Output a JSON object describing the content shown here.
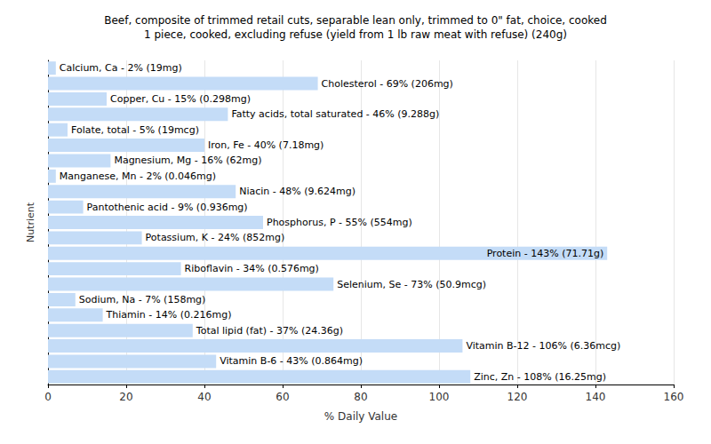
{
  "chart_data": {
    "type": "bar",
    "title": "Beef, composite of trimmed retail cuts, separable lean only, trimmed to 0\" fat, choice, cooked",
    "subtitle": "1 piece, cooked, excluding refuse (yield from 1 lb raw meat with refuse) (240g)",
    "x_label": "% Daily Value",
    "y_label": "Nutrient",
    "orientation": "horizontal",
    "color": "#c4dcf7",
    "grid": true,
    "data_labels": true,
    "tick_labels": "x",
    "xlim": [
      0,
      160
    ],
    "xticks": [
      0,
      20,
      40,
      60,
      80,
      100,
      120,
      140,
      160
    ],
    "categories": [
      "Calcium, Ca",
      "Cholesterol",
      "Copper, Cu",
      "Fatty acids, total saturated",
      "Folate, total",
      "Iron, Fe",
      "Magnesium, Mg",
      "Manganese, Mn",
      "Niacin",
      "Pantothenic acid",
      "Phosphorus, P",
      "Potassium, K",
      "Protein",
      "Riboflavin",
      "Selenium, Se",
      "Sodium, Na",
      "Thiamin",
      "Total lipid (fat)",
      "Vitamin B-12",
      "Vitamin B-6",
      "Zinc, Zn"
    ],
    "values": [
      2,
      69,
      15,
      46,
      5,
      40,
      16,
      2,
      48,
      9,
      55,
      24,
      143,
      34,
      73,
      7,
      14,
      37,
      106,
      43,
      108
    ],
    "value_labels": [
      "Calcium, Ca - 2% (19mg)",
      "Cholesterol - 69% (206mg)",
      "Copper, Cu - 15% (0.298mg)",
      "Fatty acids, total saturated - 46% (9.288g)",
      "Folate, total - 5% (19mcg)",
      "Iron, Fe - 40% (7.18mg)",
      "Magnesium, Mg - 16% (62mg)",
      "Manganese, Mn - 2% (0.046mg)",
      "Niacin - 48% (9.624mg)",
      "Pantothenic acid - 9% (0.936mg)",
      "Phosphorus, P - 55% (554mg)",
      "Potassium, K - 24% (852mg)",
      "Protein - 143% (71.71g)",
      "Riboflavin - 34% (0.576mg)",
      "Selenium, Se - 73% (50.9mcg)",
      "Sodium, Na - 7% (158mg)",
      "Thiamin - 14% (0.216mg)",
      "Total lipid (fat) - 37% (24.36g)",
      "Vitamin B-12 - 106% (6.36mcg)",
      "Vitamin B-6 - 43% (0.864mg)",
      "Zinc, Zn - 108% (16.25mg)"
    ]
  }
}
